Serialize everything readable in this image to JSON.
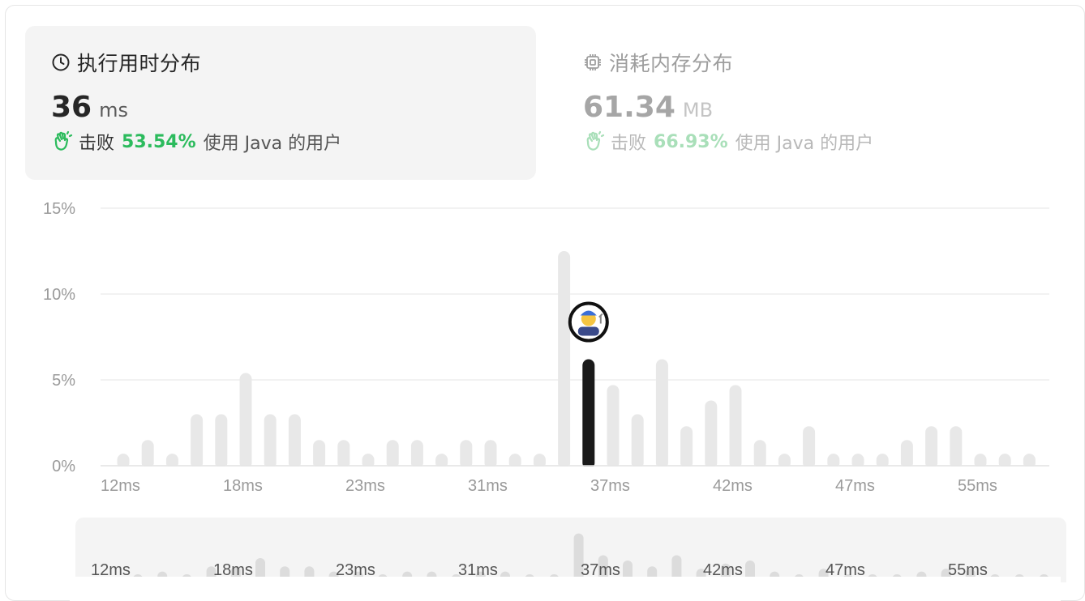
{
  "runtime": {
    "title": "执行用时分布",
    "value": "36",
    "unit": "ms",
    "beats_prefix": "击败",
    "beats_percent": "53.54%",
    "beats_suffix": "使用 Java 的用户",
    "icon": "clock-icon"
  },
  "memory": {
    "title": "消耗内存分布",
    "value": "61.34",
    "unit": "MB",
    "beats_prefix": "击败",
    "beats_percent": "66.93%",
    "beats_suffix": "使用 Java 的用户",
    "icon": "chip-icon"
  },
  "colors": {
    "accent_green": "#2cbb5d",
    "bar_gray": "#e8e8e8",
    "bar_highlight": "#1a1a1a",
    "grid": "#e6e6e6"
  },
  "chart_data": {
    "type": "bar",
    "title": "",
    "xlabel": "",
    "ylabel": "",
    "ylim": [
      0,
      15
    ],
    "y_ticks": [
      "0%",
      "5%",
      "10%",
      "15%"
    ],
    "y_tick_values": [
      0,
      5,
      10,
      15
    ],
    "x_tick_labels": [
      "12ms",
      "18ms",
      "23ms",
      "31ms",
      "37ms",
      "42ms",
      "47ms",
      "55ms"
    ],
    "x_tick_bar_index": [
      0,
      5,
      10,
      15,
      20,
      25,
      30,
      35
    ],
    "values": [
      0.7,
      1.5,
      0.7,
      3.0,
      3.0,
      5.4,
      3.0,
      3.0,
      1.5,
      1.5,
      0.7,
      1.5,
      1.5,
      0.7,
      1.5,
      1.5,
      0.7,
      0.7,
      12.5,
      6.2,
      4.7,
      3.0,
      6.2,
      2.3,
      3.8,
      4.7,
      1.5,
      0.7,
      2.3,
      0.7,
      0.7,
      0.7,
      1.5,
      2.3,
      2.3,
      0.7,
      0.7,
      0.7
    ],
    "highlight_index": 19,
    "highlight_marker": "user-avatar",
    "grid": true,
    "overview": {
      "x_tick_labels": [
        "12ms",
        "18ms",
        "23ms",
        "31ms",
        "37ms",
        "42ms",
        "47ms",
        "55ms"
      ]
    }
  }
}
